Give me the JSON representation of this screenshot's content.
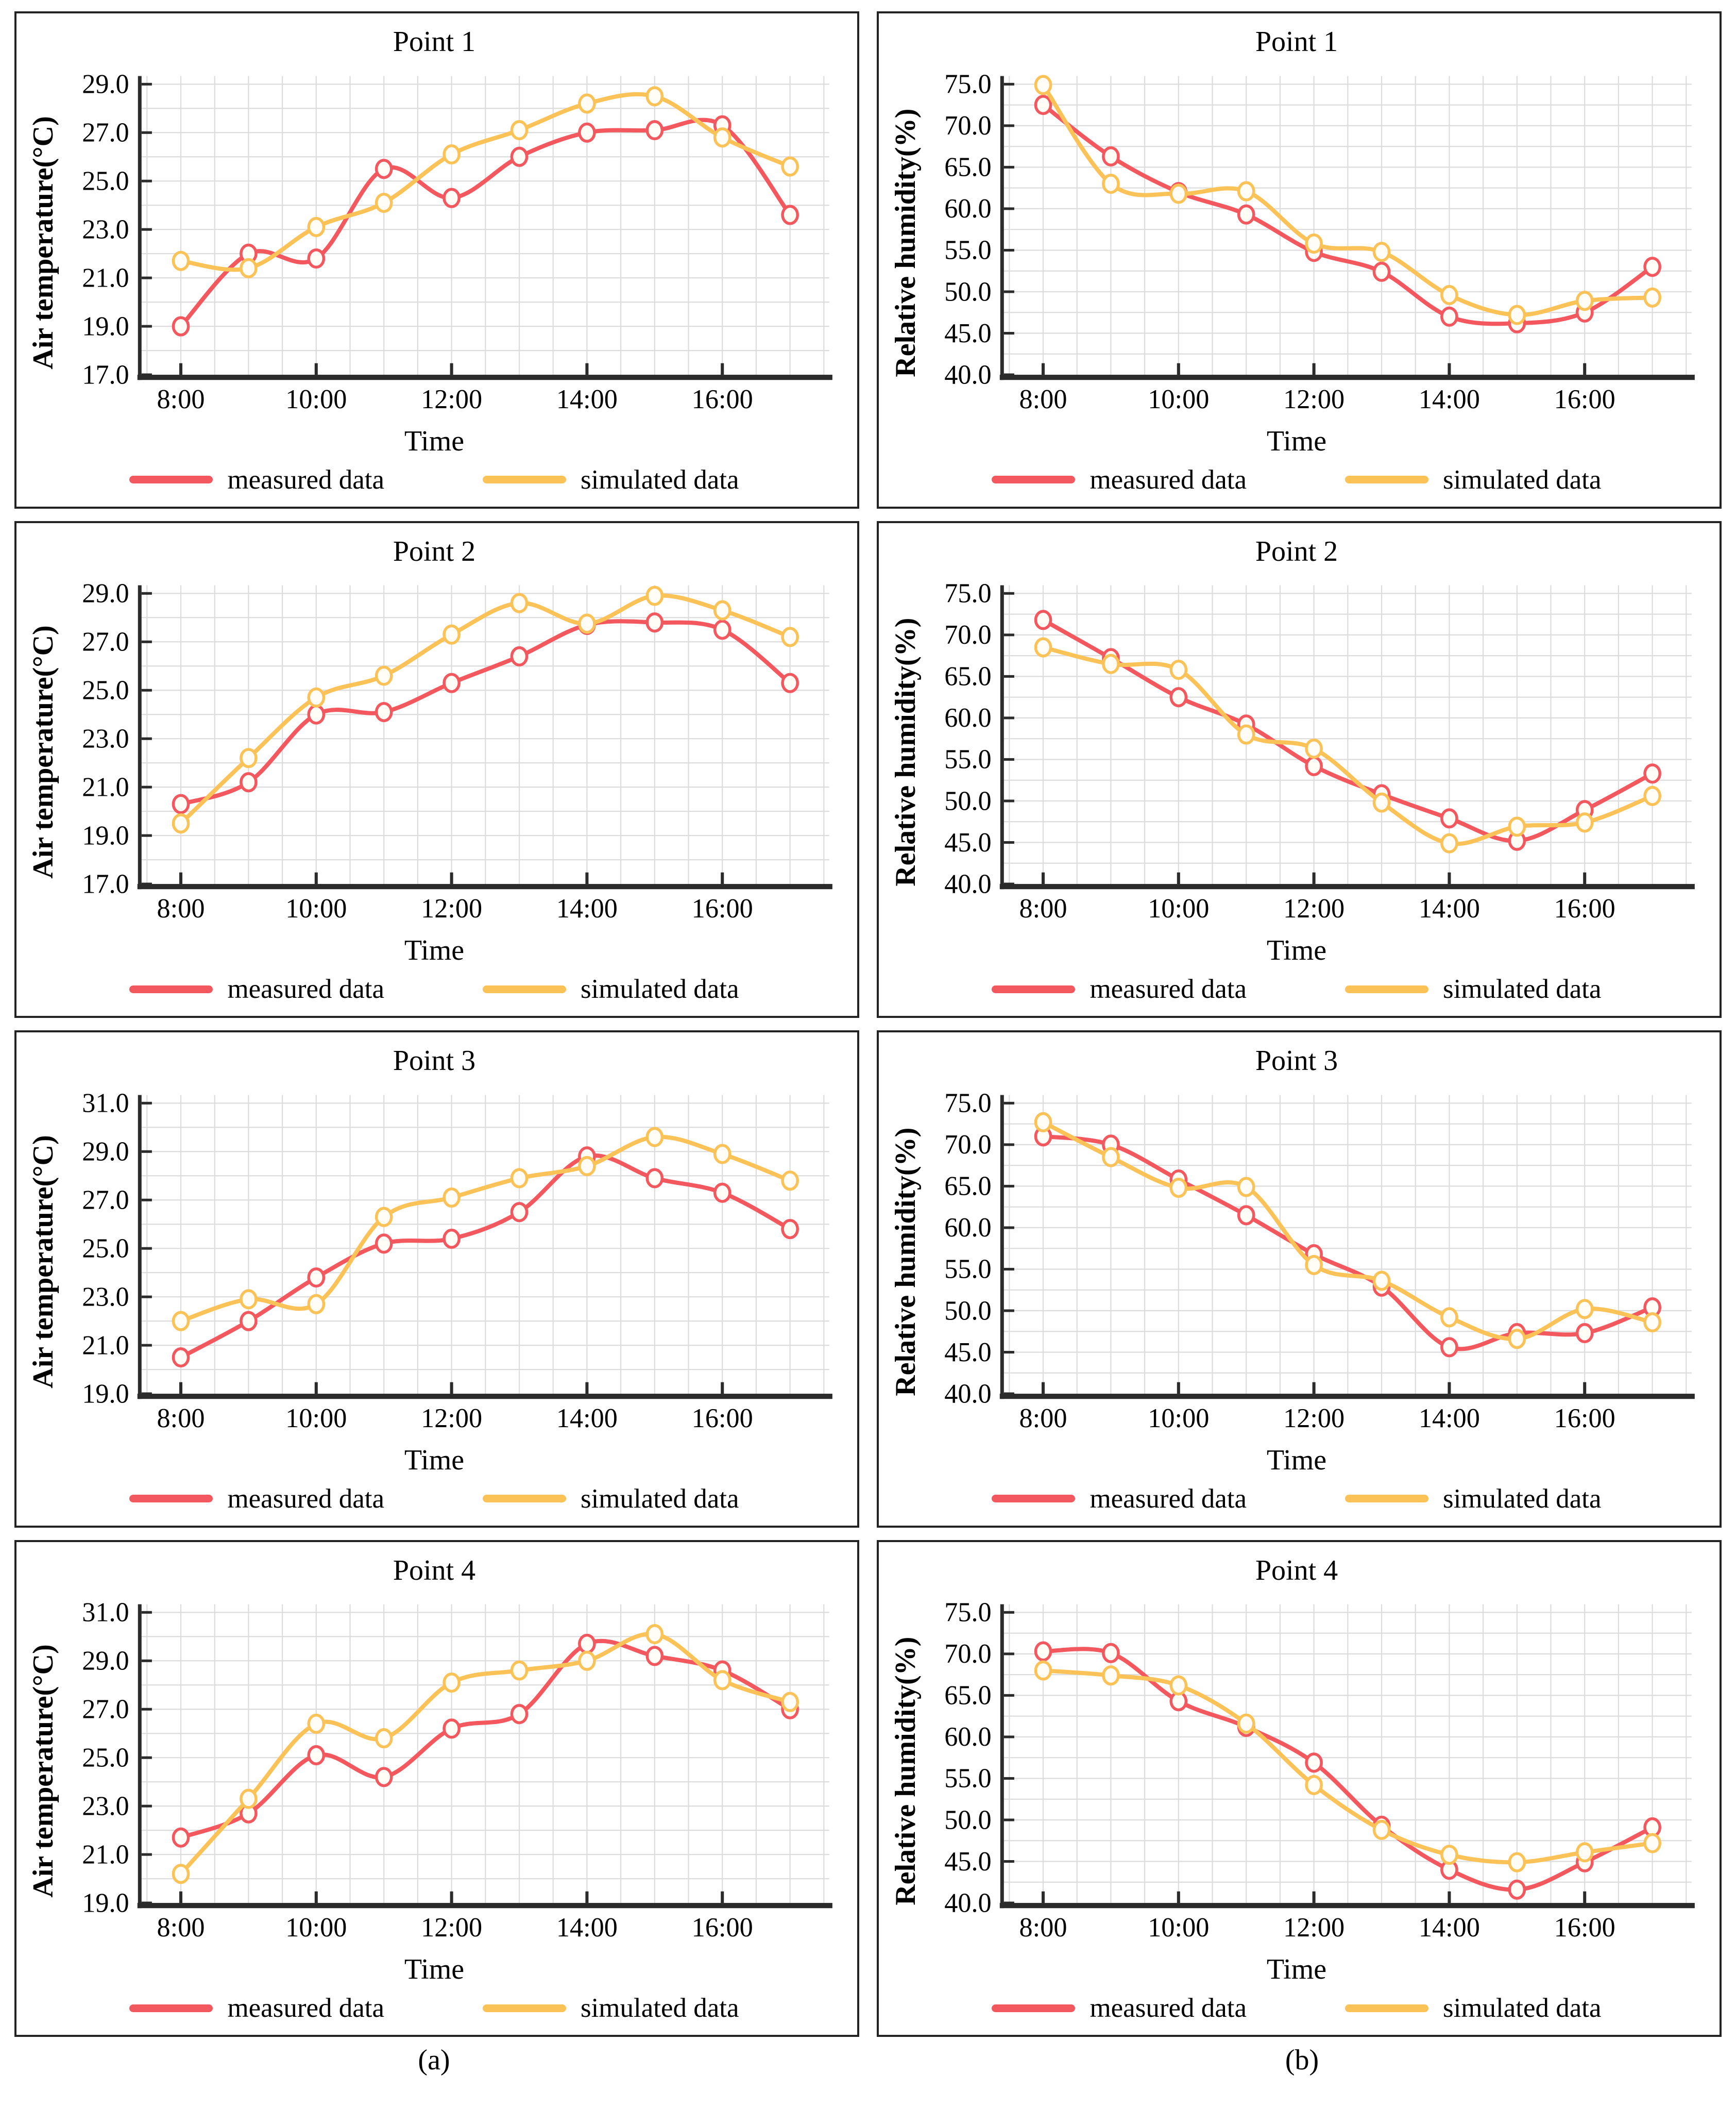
{
  "figure": {
    "legend": {
      "measured": "measured data",
      "simulated": "simulated data"
    },
    "footer_labels": {
      "a": "(a)",
      "b": "(b)"
    },
    "colors": {
      "measured": "#F4585F",
      "simulated": "#FBC258",
      "grid": "#DCDCDC",
      "axis": "#2B2B2B",
      "marker_fill": "#FFFDF6"
    },
    "x_tick_labels": [
      "8:00",
      "10:00",
      "12:00",
      "14:00",
      "16:00"
    ]
  },
  "chart_data": [
    {
      "type": "line",
      "title": "Point 1",
      "ylabel": "Air temperature(°C)",
      "xlabel": "Time",
      "x": [
        "8:00",
        "9:00",
        "10:00",
        "11:00",
        "12:00",
        "13:00",
        "14:00",
        "15:00",
        "16:00",
        "17:00"
      ],
      "ylim": [
        17.0,
        29.0
      ],
      "ytick_step": 2.0,
      "grid_step": 1.0,
      "grid": "on",
      "legend_position": "bottom",
      "series": [
        {
          "name": "measured data",
          "values": [
            19.0,
            22.0,
            21.8,
            25.5,
            24.3,
            26.0,
            27.0,
            27.1,
            27.3,
            23.6
          ]
        },
        {
          "name": "simulated data",
          "values": [
            21.7,
            21.4,
            23.1,
            24.1,
            26.1,
            27.1,
            28.2,
            28.5,
            26.8,
            25.6
          ]
        }
      ]
    },
    {
      "type": "line",
      "title": "Point 1",
      "ylabel": "Relative humidity(%)",
      "xlabel": "Time",
      "x": [
        "8:00",
        "9:00",
        "10:00",
        "11:00",
        "12:00",
        "13:00",
        "14:00",
        "15:00",
        "16:00",
        "17:00"
      ],
      "ylim": [
        40.0,
        75.0
      ],
      "ytick_step": 5.0,
      "grid_step": 2.5,
      "grid": "on",
      "legend_position": "bottom",
      "series": [
        {
          "name": "measured data",
          "values": [
            72.5,
            66.3,
            62.0,
            59.3,
            54.8,
            52.4,
            47.0,
            46.2,
            47.5,
            53.0
          ]
        },
        {
          "name": "simulated data",
          "values": [
            74.9,
            63.0,
            61.8,
            62.1,
            55.8,
            54.8,
            49.6,
            47.2,
            48.9,
            49.3
          ]
        }
      ]
    },
    {
      "type": "line",
      "title": "Point 2",
      "ylabel": "Air temperature(°C)",
      "xlabel": "Time",
      "x": [
        "8:00",
        "9:00",
        "10:00",
        "11:00",
        "12:00",
        "13:00",
        "14:00",
        "15:00",
        "16:00",
        "17:00"
      ],
      "ylim": [
        17.0,
        29.0
      ],
      "ytick_step": 2.0,
      "grid_step": 1.0,
      "grid": "on",
      "legend_position": "bottom",
      "series": [
        {
          "name": "measured data",
          "values": [
            20.3,
            21.2,
            24.0,
            24.1,
            25.3,
            26.4,
            27.7,
            27.8,
            27.5,
            25.3
          ]
        },
        {
          "name": "simulated data",
          "values": [
            19.5,
            22.2,
            24.7,
            25.6,
            27.3,
            28.6,
            27.75,
            28.9,
            28.3,
            27.2
          ]
        }
      ]
    },
    {
      "type": "line",
      "title": "Point 2",
      "ylabel": "Relative humidity(%)",
      "xlabel": "Time",
      "x": [
        "8:00",
        "9:00",
        "10:00",
        "11:00",
        "12:00",
        "13:00",
        "14:00",
        "15:00",
        "16:00",
        "17:00"
      ],
      "ylim": [
        40.0,
        75.0
      ],
      "ytick_step": 5.0,
      "grid_step": 2.5,
      "grid": "on",
      "legend_position": "bottom",
      "series": [
        {
          "name": "measured data",
          "values": [
            71.8,
            67.2,
            62.5,
            59.2,
            54.2,
            50.8,
            47.9,
            45.2,
            48.9,
            53.3
          ]
        },
        {
          "name": "simulated data",
          "values": [
            68.5,
            66.5,
            65.8,
            58.0,
            56.3,
            49.8,
            44.9,
            46.9,
            47.4,
            50.6
          ]
        }
      ]
    },
    {
      "type": "line",
      "title": "Point 3",
      "ylabel": "Air temperature(°C)",
      "xlabel": "Time",
      "x": [
        "8:00",
        "9:00",
        "10:00",
        "11:00",
        "12:00",
        "13:00",
        "14:00",
        "15:00",
        "16:00",
        "17:00"
      ],
      "ylim": [
        19.0,
        31.0
      ],
      "ytick_step": 2.0,
      "grid_step": 1.0,
      "grid": "on",
      "legend_position": "bottom",
      "series": [
        {
          "name": "measured data",
          "values": [
            20.5,
            22.0,
            23.8,
            25.2,
            25.4,
            26.5,
            28.8,
            27.9,
            27.3,
            25.8
          ]
        },
        {
          "name": "simulated data",
          "values": [
            22.0,
            22.9,
            22.7,
            26.3,
            27.1,
            27.9,
            28.4,
            29.6,
            28.9,
            27.8
          ]
        }
      ]
    },
    {
      "type": "line",
      "title": "Point 3",
      "ylabel": "Relative humidity(%)",
      "xlabel": "Time",
      "x": [
        "8:00",
        "9:00",
        "10:00",
        "11:00",
        "12:00",
        "13:00",
        "14:00",
        "15:00",
        "16:00",
        "17:00"
      ],
      "ylim": [
        40.0,
        75.0
      ],
      "ytick_step": 5.0,
      "grid_step": 2.5,
      "grid": "on",
      "legend_position": "bottom",
      "series": [
        {
          "name": "measured data",
          "values": [
            71.0,
            70.0,
            65.8,
            61.5,
            56.8,
            52.9,
            45.6,
            47.3,
            47.3,
            50.4
          ]
        },
        {
          "name": "simulated data",
          "values": [
            72.7,
            68.5,
            64.8,
            64.9,
            55.5,
            53.6,
            49.2,
            46.6,
            50.2,
            48.6
          ]
        }
      ]
    },
    {
      "type": "line",
      "title": "Point 4",
      "ylabel": "Air temperature(°C)",
      "xlabel": "Time",
      "x": [
        "8:00",
        "9:00",
        "10:00",
        "11:00",
        "12:00",
        "13:00",
        "14:00",
        "15:00",
        "16:00",
        "17:00"
      ],
      "ylim": [
        19.0,
        31.0
      ],
      "ytick_step": 2.0,
      "grid_step": 1.0,
      "grid": "on",
      "legend_position": "bottom",
      "series": [
        {
          "name": "measured data",
          "values": [
            21.7,
            22.7,
            25.1,
            24.2,
            26.2,
            26.8,
            29.7,
            29.2,
            28.6,
            27.0
          ]
        },
        {
          "name": "simulated data",
          "values": [
            20.2,
            23.3,
            26.4,
            25.8,
            28.1,
            28.6,
            29.0,
            30.1,
            28.2,
            27.3
          ]
        }
      ]
    },
    {
      "type": "line",
      "title": "Point 4",
      "ylabel": "Relative humidity(%)",
      "xlabel": "Time",
      "x": [
        "8:00",
        "9:00",
        "10:00",
        "11:00",
        "12:00",
        "13:00",
        "14:00",
        "15:00",
        "16:00",
        "17:00"
      ],
      "ylim": [
        40.0,
        75.0
      ],
      "ytick_step": 5.0,
      "grid_step": 2.5,
      "grid": "on",
      "legend_position": "bottom",
      "series": [
        {
          "name": "measured data",
          "values": [
            70.3,
            70.1,
            64.3,
            61.2,
            56.9,
            49.3,
            44.0,
            41.6,
            44.9,
            49.1
          ]
        },
        {
          "name": "simulated data",
          "values": [
            68.0,
            67.4,
            66.2,
            61.6,
            54.2,
            48.8,
            45.8,
            44.9,
            46.1,
            47.2
          ]
        }
      ]
    }
  ]
}
